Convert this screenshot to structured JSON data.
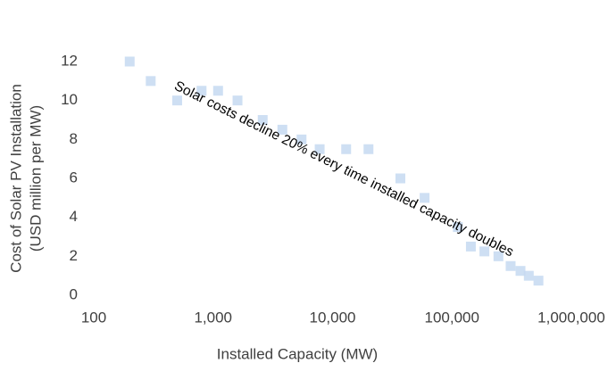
{
  "chart_data": {
    "type": "scatter",
    "xlabel": "Installed Capacity (MW)",
    "ylabel": [
      "Cost of Solar PV Installation",
      "(USD million per MW)"
    ],
    "annotation": "Solar costs decline 20% every time installed capacity doubles",
    "x": [
      200,
      300,
      500,
      800,
      1100,
      1600,
      2600,
      3800,
      5500,
      7800,
      13000,
      20000,
      37000,
      59000,
      112000,
      144000,
      187000,
      245000,
      310000,
      375000,
      440000,
      530000
    ],
    "values": [
      12,
      11,
      10,
      10.5,
      10.5,
      10,
      9,
      8.5,
      8,
      7.5,
      7.5,
      7.5,
      6,
      5,
      3.5,
      2.5,
      2.25,
      2,
      1.5,
      1.25,
      1,
      0.75
    ],
    "color": "#c6d9f1",
    "xscale": "log",
    "xlim": [
      100,
      1000000
    ],
    "xticks": [
      100,
      {
        "value": 1000,
        "label": "1,000"
      },
      {
        "value": 10000,
        "label": "10,000"
      },
      {
        "value": 100000,
        "label": "100,000"
      },
      {
        "value": 1000000,
        "label": "1,000,000"
      }
    ],
    "ylim": [
      0,
      12
    ],
    "yticks": [
      0,
      2,
      4,
      6,
      8,
      10,
      12
    ],
    "grid": false
  }
}
